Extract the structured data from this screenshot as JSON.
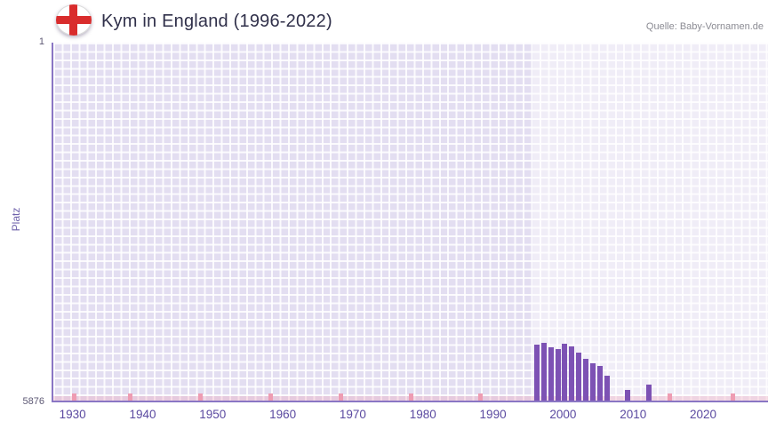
{
  "header": {
    "title": "Kym in England (1996-2022)",
    "source": "Quelle: Baby-Vornamen.de",
    "flag_icon": "england-flag-icon",
    "flag_colors": {
      "background": "#ffffff",
      "cross": "#d92c2c"
    }
  },
  "chart_data": {
    "type": "bar",
    "title": "Kym in England (1996-2022)",
    "xlabel": "",
    "ylabel": "Platz",
    "y_axis": {
      "top_label": "1",
      "bottom_label": "5876",
      "min": 1,
      "max": 5876,
      "inverted": true
    },
    "x_axis": {
      "min": 1927,
      "max": 2029,
      "tick_years": [
        1930,
        1940,
        1950,
        1960,
        1970,
        1980,
        1990,
        2000,
        2010,
        2020
      ]
    },
    "bar_color": "#7d52b4",
    "plot_background": "#e3def1",
    "grid": true,
    "highlight_band": {
      "from": 1995.5,
      "to": 2029
    },
    "axis_marks_years": [
      1930,
      1938,
      1948,
      1958,
      1968,
      1978,
      1988,
      2015,
      2024
    ],
    "axis_mark_color": "#ee9cb2",
    "points": [
      {
        "year": 1996,
        "rank": 4962
      },
      {
        "year": 1997,
        "rank": 4933
      },
      {
        "year": 1998,
        "rank": 5006
      },
      {
        "year": 1999,
        "rank": 5035
      },
      {
        "year": 2000,
        "rank": 4948
      },
      {
        "year": 2001,
        "rank": 4991
      },
      {
        "year": 2002,
        "rank": 5093
      },
      {
        "year": 2003,
        "rank": 5194
      },
      {
        "year": 2004,
        "rank": 5267
      },
      {
        "year": 2005,
        "rank": 5310
      },
      {
        "year": 2006,
        "rank": 5470
      },
      {
        "year": 2009,
        "rank": 5702
      },
      {
        "year": 2012,
        "rank": 5615
      }
    ]
  }
}
